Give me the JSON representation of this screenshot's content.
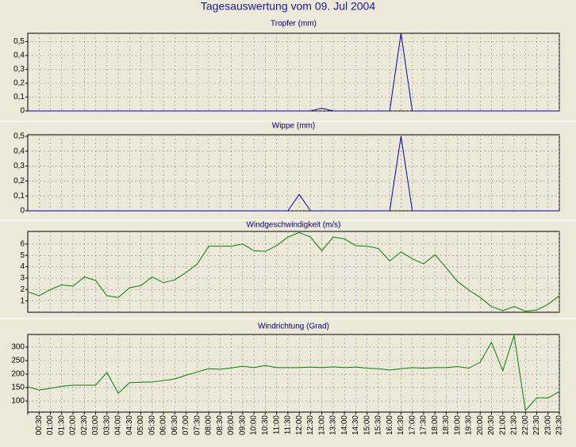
{
  "header": {
    "title": "Tagesauswertung vom 09. Jul 2004"
  },
  "chart_data": [
    {
      "type": "line",
      "title": "Tropfer (mm)",
      "color": "#0000c8",
      "grid": true,
      "ylim": [
        0,
        0.56
      ],
      "yticks": [
        0,
        {
          "value": 0.1,
          "label": "0,1"
        },
        {
          "value": 0.2,
          "label": "0,2"
        },
        {
          "value": 0.3,
          "label": "0,3"
        },
        {
          "value": 0.4,
          "label": "0,4"
        },
        {
          "value": 0.5,
          "label": "0,5"
        }
      ],
      "values": [
        0,
        0,
        0,
        0,
        0,
        0,
        0,
        0,
        0,
        0,
        0,
        0,
        0,
        0,
        0,
        0,
        0,
        0,
        0,
        0,
        0,
        0,
        0,
        0,
        0,
        0,
        0.02,
        0,
        0,
        0,
        0,
        0,
        0,
        0.56,
        0,
        0,
        0,
        0,
        0,
        0,
        0,
        0,
        0,
        0,
        0,
        0,
        0,
        0
      ]
    },
    {
      "type": "line",
      "title": "Wippe (mm)",
      "color": "#0000c8",
      "grid": true,
      "ylim": [
        0,
        0.51
      ],
      "yticks": [
        0,
        {
          "value": 0.1,
          "label": "0,1"
        },
        {
          "value": 0.2,
          "label": "0,2"
        },
        {
          "value": 0.3,
          "label": "0,3"
        },
        {
          "value": 0.4,
          "label": "0,4"
        },
        {
          "value": 0.5,
          "label": "0,5"
        }
      ],
      "values": [
        0,
        0,
        0,
        0,
        0,
        0,
        0,
        0,
        0,
        0,
        0,
        0,
        0,
        0,
        0,
        0,
        0,
        0,
        0,
        0,
        0,
        0,
        0,
        0,
        0.11,
        0,
        0,
        0,
        0,
        0,
        0,
        0,
        0,
        0.5,
        0,
        0,
        0,
        0,
        0,
        0,
        0,
        0,
        0,
        0,
        0,
        0,
        0,
        0
      ]
    },
    {
      "type": "line",
      "title": "Windgeschwindigkeit (m/s)",
      "color": "#008000",
      "grid": true,
      "ylim": [
        0,
        7.1
      ],
      "yticks": [
        1,
        2,
        3,
        4,
        5,
        6
      ],
      "values": [
        1.8,
        1.45,
        2.0,
        2.4,
        2.3,
        3.1,
        2.8,
        1.45,
        1.3,
        2.15,
        2.35,
        3.1,
        2.6,
        2.85,
        3.5,
        4.25,
        5.8,
        5.8,
        5.8,
        6.0,
        5.4,
        5.35,
        5.85,
        6.6,
        7.0,
        6.6,
        5.4,
        6.6,
        6.45,
        5.85,
        5.8,
        5.6,
        4.5,
        5.3,
        4.7,
        4.25,
        5.05,
        3.9,
        2.7,
        1.95,
        1.3,
        0.5,
        0.15,
        0.5,
        0.1,
        0.2,
        0.7,
        1.45
      ]
    },
    {
      "type": "line",
      "title": "Windrichtung (Grad)",
      "color": "#008000",
      "grid": true,
      "ylim": [
        59,
        347
      ],
      "yticks": [
        100,
        150,
        200,
        250,
        300
      ],
      "categories": [
        null,
        "00:30",
        "01:00",
        "01:30",
        "02:00",
        "02:30",
        "03:00",
        "03:30",
        "04:00",
        "04:30",
        "05:00",
        "05:30",
        "06:00",
        "06:30",
        "07:00",
        "07:30",
        "08:00",
        "08:30",
        "09:00",
        "09:30",
        "10:00",
        "10:30",
        "11:00",
        "11:30",
        "12:00",
        "12:30",
        "13:00",
        "13:30",
        "14:00",
        "14:30",
        "15:00",
        "15:30",
        "16:00",
        "16:30",
        "17:00",
        "17:30",
        "18:00",
        "18:30",
        "19:00",
        "19:30",
        "20:00",
        "20:30",
        "21:00",
        "21:30",
        "22:00",
        "22:30",
        "23:00",
        "23:30"
      ],
      "values": [
        153,
        141,
        147,
        155,
        159,
        159,
        159,
        206,
        129,
        168,
        170,
        171,
        176,
        182,
        196,
        208,
        220,
        218,
        223,
        229,
        224,
        232,
        224,
        224,
        224,
        226,
        224,
        227,
        224,
        226,
        222,
        220,
        215,
        220,
        224,
        222,
        224,
        224,
        228,
        222,
        244,
        318,
        212,
        344,
        65,
        112,
        112,
        135
      ]
    }
  ]
}
